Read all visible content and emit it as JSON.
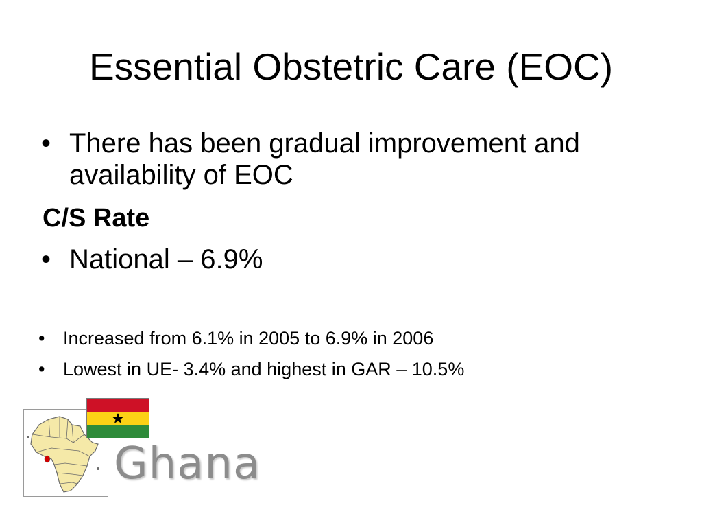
{
  "slide": {
    "title": "Essential Obstetric Care (EOC)",
    "bullet_char": "•",
    "main_bullet": "There has been gradual improvement and availability of EOC",
    "subheading": "C/S Rate",
    "rate_bullet": "National – 6.9%",
    "detail_bullets": [
      "Increased from 6.1% in 2005 to 6.9% in 2006",
      "Lowest in UE- 3.4% and highest in GAR – 10.5%"
    ]
  },
  "logo": {
    "wordmark": "Ghana",
    "icon": "africa-map-icon",
    "flag_icon": "ghana-flag-icon",
    "colors": {
      "map_fill": "#f5e9a8",
      "map_outline": "#6b6b6b",
      "ghana_highlight": "#d20000",
      "flag_red": "#ce1126",
      "flag_yellow": "#fcd116",
      "flag_green": "#2e8b3a",
      "flag_star": "#000000",
      "wordmark": "#8c8c8c"
    }
  }
}
